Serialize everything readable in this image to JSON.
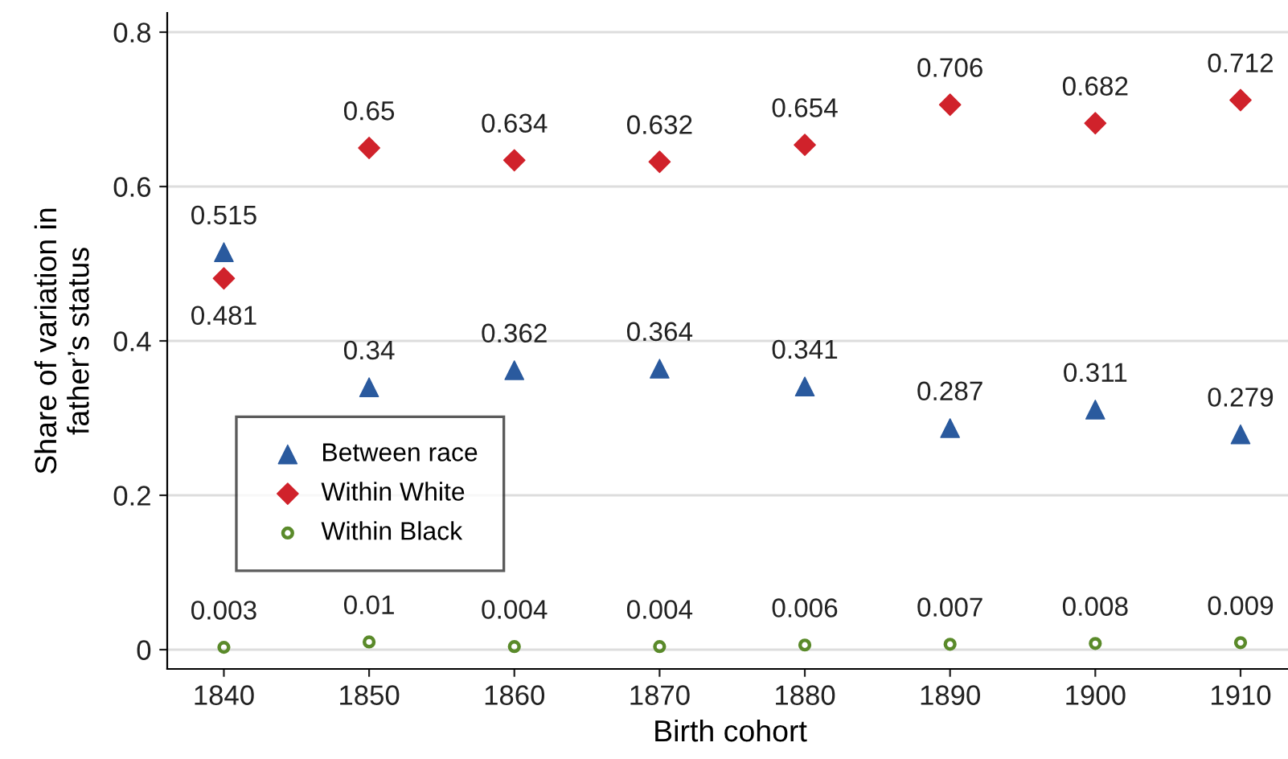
{
  "chart_data": {
    "type": "scatter",
    "xlabel": "Birth cohort",
    "ylabel": "Share of variation in\nfather’s status",
    "x": [
      1840,
      1850,
      1860,
      1870,
      1880,
      1890,
      1900,
      1910
    ],
    "series": [
      {
        "name": "Between race",
        "color": "#2a5a9e",
        "marker": "triangle",
        "values": [
          0.515,
          0.34,
          0.362,
          0.364,
          0.341,
          0.287,
          0.311,
          0.279
        ]
      },
      {
        "name": "Within White",
        "color": "#d0222b",
        "marker": "diamond",
        "values": [
          0.481,
          0.65,
          0.634,
          0.632,
          0.654,
          0.706,
          0.682,
          0.712
        ]
      },
      {
        "name": "Within Black",
        "color": "#5a8a2a",
        "marker": "circle",
        "values": [
          0.003,
          0.01,
          0.004,
          0.004,
          0.006,
          0.007,
          0.008,
          0.009
        ]
      }
    ],
    "data_labels": true,
    "xlim": [
      1836.1,
      1913.6
    ],
    "xticks": [
      1840,
      1850,
      1860,
      1870,
      1880,
      1890,
      1900,
      1910
    ],
    "ylim": [
      -0.025,
      0.825
    ],
    "yticks": [
      {
        "value": 0,
        "label": "0"
      },
      0.2,
      0.4,
      0.6,
      0.8
    ],
    "grid": "y",
    "legend": "bottom left"
  }
}
